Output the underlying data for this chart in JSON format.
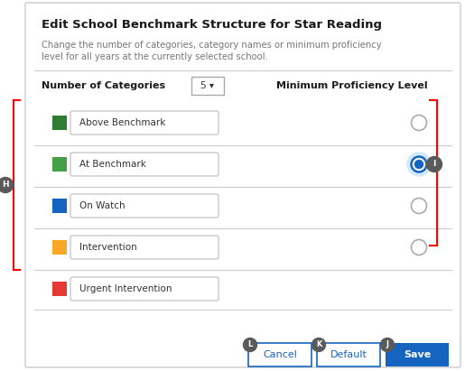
{
  "title": "Edit School Benchmark Structure for Star Reading",
  "subtitle_line1": "Change the number of categories, category names or minimum proficiency",
  "subtitle_line2": "level for all years at the currently selected school.",
  "num_categories_label": "Number of Categories",
  "num_categories_value": "5 ▾",
  "min_prof_label": "Minimum Proficiency Level",
  "categories": [
    {
      "name": "Above Benchmark",
      "color": "#2e7d32",
      "has_radio": true,
      "selected": false
    },
    {
      "name": "At Benchmark",
      "color": "#43a047",
      "has_radio": true,
      "selected": true
    },
    {
      "name": "On Watch",
      "color": "#1565c0",
      "has_radio": true,
      "selected": false
    },
    {
      "name": "Intervention",
      "color": "#f9a825",
      "has_radio": true,
      "selected": false
    },
    {
      "name": "Urgent Intervention",
      "color": "#e53935",
      "has_radio": false,
      "selected": false
    }
  ],
  "buttons": [
    {
      "label": "Cancel",
      "badge": "L",
      "style": "outline",
      "color": "#1565c0"
    },
    {
      "label": "Default",
      "badge": "K",
      "style": "outline",
      "color": "#1565c0"
    },
    {
      "label": "Save",
      "badge": "J",
      "style": "filled",
      "color": "#1565c0"
    }
  ],
  "badge_H": "H",
  "badge_I": "I",
  "bg": "#ffffff",
  "panel_border": "#cccccc",
  "subtitle_color": "#777777",
  "sep_color": "#cccccc",
  "radio_sel_color": "#1565c0",
  "radio_sel_bg": "#bbdefb",
  "radio_unsel_ec": "#aaaaaa",
  "badge_bg": "#5a5a5a"
}
